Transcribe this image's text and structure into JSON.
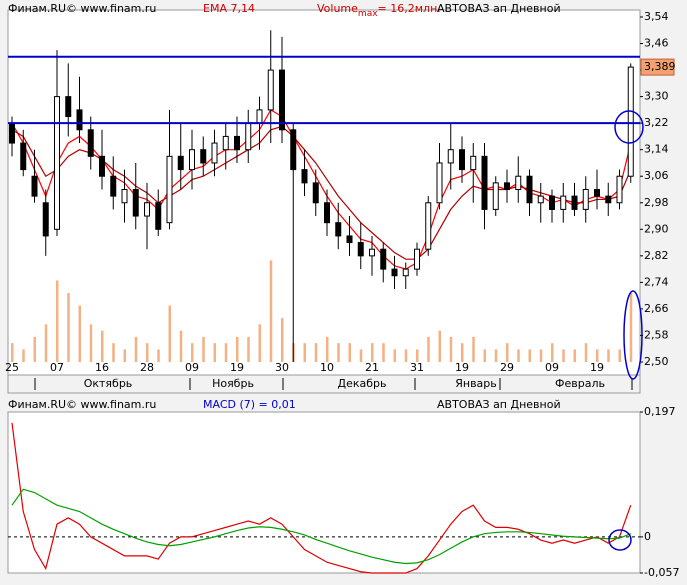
{
  "chart_data": [
    {
      "type": "candlestick",
      "source": "Финам.RU©  www.finam.ru",
      "indicator": "EMA 7,14",
      "volume_label": "Volume",
      "volume_sub": "max",
      "volume_value": "= 16,2млн.",
      "title": "АВТОВАЗ ап Дневной",
      "categories": [
        "25",
        null,
        null,
        null,
        "07",
        null,
        null,
        null,
        "16",
        null,
        null,
        null,
        "28",
        null,
        null,
        null,
        "09",
        null,
        null,
        null,
        "19",
        null,
        null,
        null,
        "30",
        null,
        null,
        null,
        "10",
        null,
        null,
        null,
        "21",
        null,
        null,
        null,
        "31",
        null,
        null,
        null,
        "19",
        null,
        null,
        null,
        "29",
        null,
        null,
        null,
        "09",
        null,
        null,
        null,
        "19",
        null,
        null,
        null
      ],
      "months": [
        "Октябрь",
        "Ноябрь",
        "Декабрь",
        "Январь",
        "Февраль"
      ],
      "open": [
        3.22,
        3.16,
        3.06,
        2.98,
        2.9,
        3.3,
        3.26,
        3.2,
        3.12,
        3.06,
        2.98,
        3.02,
        2.94,
        2.98,
        2.92,
        3.12,
        3.08,
        3.14,
        3.1,
        3.14,
        3.18,
        3.14,
        3.22,
        3.26,
        3.38,
        3.2,
        3.08,
        3.04,
        2.98,
        2.92,
        2.88,
        2.86,
        2.82,
        2.84,
        2.78,
        2.76,
        2.78,
        2.84,
        2.98,
        3.1,
        3.14,
        3.08,
        3.12,
        2.96,
        3.04,
        3.02,
        3.06,
        2.98,
        3.0,
        2.96,
        3.0,
        2.96,
        3.02,
        3.0,
        2.98,
        3.06
      ],
      "high": [
        3.24,
        3.2,
        3.14,
        3.02,
        3.44,
        3.4,
        3.36,
        3.24,
        3.2,
        3.12,
        3.08,
        3.1,
        3.04,
        3.02,
        3.26,
        3.22,
        3.2,
        3.18,
        3.2,
        3.22,
        3.24,
        3.26,
        3.3,
        3.5,
        3.48,
        3.22,
        3.14,
        3.08,
        3.02,
        2.98,
        2.94,
        2.92,
        2.88,
        2.86,
        2.82,
        2.8,
        2.86,
        3.0,
        3.16,
        3.22,
        3.18,
        3.16,
        3.16,
        3.06,
        3.08,
        3.12,
        3.08,
        3.04,
        3.02,
        3.04,
        3.04,
        3.06,
        3.08,
        3.04,
        3.08,
        3.4
      ],
      "low": [
        3.12,
        3.06,
        2.98,
        2.82,
        2.88,
        3.18,
        3.16,
        3.08,
        3.02,
        2.96,
        2.92,
        2.9,
        2.84,
        2.88,
        2.9,
        3.02,
        3.02,
        3.06,
        3.06,
        3.08,
        3.1,
        3.1,
        3.14,
        3.16,
        3.16,
        2.5,
        3.0,
        2.94,
        2.88,
        2.84,
        2.82,
        2.78,
        2.76,
        2.74,
        2.72,
        2.72,
        2.76,
        2.82,
        2.96,
        3.02,
        3.04,
        2.98,
        2.9,
        2.94,
        2.98,
        2.98,
        2.94,
        2.92,
        2.92,
        2.92,
        2.94,
        2.92,
        2.96,
        2.94,
        2.96,
        3.04
      ],
      "close": [
        3.16,
        3.08,
        3.0,
        2.88,
        3.3,
        3.24,
        3.2,
        3.12,
        3.06,
        3.0,
        3.02,
        2.94,
        2.98,
        2.9,
        3.12,
        3.08,
        3.14,
        3.1,
        3.16,
        3.18,
        3.14,
        3.22,
        3.26,
        3.38,
        3.2,
        3.08,
        3.04,
        2.98,
        2.92,
        2.88,
        2.86,
        2.82,
        2.84,
        2.78,
        2.76,
        2.78,
        2.84,
        2.98,
        3.1,
        3.14,
        3.08,
        3.12,
        2.96,
        3.04,
        3.02,
        3.06,
        2.98,
        3.0,
        2.96,
        3.0,
        2.96,
        3.02,
        3.0,
        2.98,
        3.06,
        3.389
      ],
      "last_label": "3,389",
      "volume": [
        3,
        2,
        4,
        6,
        13,
        11,
        9,
        6,
        5,
        3,
        2,
        4,
        3,
        2,
        9,
        5,
        3,
        4,
        3,
        3,
        4,
        4,
        6,
        16.2,
        7,
        3,
        3,
        3,
        4,
        3,
        3,
        2,
        3,
        3,
        2,
        2,
        2,
        4,
        5,
        4,
        3,
        4,
        2,
        2,
        3,
        2,
        2,
        2,
        3,
        2,
        2,
        3,
        2,
        2,
        2,
        11
      ],
      "volume_color": "#f4b183",
      "volume_ylim": [
        0,
        55
      ],
      "lines": [
        {
          "color": "#ff0000",
          "values": [
            3.22,
            3.16,
            3.08,
            3.0,
            3.1,
            3.16,
            3.18,
            3.15,
            3.11,
            3.06,
            3.04,
            3.0,
            2.99,
            2.96,
            3.02,
            3.05,
            3.08,
            3.09,
            3.12,
            3.14,
            3.14,
            3.17,
            3.2,
            3.26,
            3.24,
            3.18,
            3.12,
            3.06,
            3.0,
            2.95,
            2.91,
            2.87,
            2.86,
            2.82,
            2.79,
            2.78,
            2.8,
            2.88,
            2.98,
            3.05,
            3.06,
            3.08,
            3.02,
            3.03,
            3.02,
            3.04,
            3.01,
            3.0,
            2.98,
            2.99,
            2.97,
            2.99,
            3.0,
            2.99,
            3.02,
            3.16
          ]
        },
        {
          "color": "#b00000",
          "values": [
            3.2,
            3.18,
            3.12,
            3.06,
            3.08,
            3.12,
            3.14,
            3.13,
            3.11,
            3.08,
            3.06,
            3.03,
            3.01,
            2.98,
            3.0,
            3.02,
            3.05,
            3.06,
            3.08,
            3.1,
            3.12,
            3.14,
            3.16,
            3.2,
            3.21,
            3.18,
            3.14,
            3.1,
            3.05,
            3.0,
            2.96,
            2.92,
            2.89,
            2.86,
            2.83,
            2.81,
            2.81,
            2.84,
            2.9,
            2.96,
            3.0,
            3.03,
            3.02,
            3.02,
            3.02,
            3.03,
            3.02,
            3.01,
            3.0,
            2.99,
            2.98,
            2.98,
            2.99,
            2.99,
            3.0,
            3.08
          ]
        }
      ],
      "hlines": {
        "color": "#0000cc",
        "values": [
          3.42,
          3.22
        ]
      },
      "ylim": [
        2.5,
        3.54
      ],
      "yticks": [
        {
          "value": 3.54,
          "label": "3,54"
        },
        {
          "value": 3.46,
          "label": "3,46"
        },
        {
          "value": 3.38,
          "label": "3,38"
        },
        {
          "value": 3.3,
          "label": "3,30"
        },
        {
          "value": 3.22,
          "label": "3,22"
        },
        {
          "value": 3.14,
          "label": "3,14"
        },
        {
          "value": 3.06,
          "label": "3,06"
        },
        {
          "value": 2.98,
          "label": "2,98"
        },
        {
          "value": 2.9,
          "label": "2,90"
        },
        {
          "value": 2.82,
          "label": "2,82"
        },
        {
          "value": 2.74,
          "label": "2,74"
        },
        {
          "value": 2.66,
          "label": "2,66"
        },
        {
          "value": 2.58,
          "label": "2,58"
        },
        {
          "value": 2.5,
          "label": "2,50"
        }
      ]
    },
    {
      "type": "line",
      "source": "Финам.RU©  www.finam.ru",
      "indicator": "MACD (7) = 0,01",
      "title": "АВТОВАЗ ап Дневной",
      "series": [
        {
          "color": "#e00000",
          "values": [
            0.18,
            0.04,
            -0.02,
            -0.05,
            0.02,
            0.03,
            0.02,
            0.0,
            -0.01,
            -0.02,
            -0.03,
            -0.03,
            -0.03,
            -0.035,
            -0.01,
            0.0,
            0.0,
            0.005,
            0.01,
            0.015,
            0.02,
            0.025,
            0.02,
            0.03,
            0.02,
            0.0,
            -0.02,
            -0.03,
            -0.04,
            -0.045,
            -0.05,
            -0.055,
            -0.057,
            -0.057,
            -0.057,
            -0.057,
            -0.05,
            -0.03,
            -0.005,
            0.02,
            0.04,
            0.05,
            0.025,
            0.015,
            0.015,
            0.012,
            0.005,
            -0.005,
            -0.01,
            -0.005,
            -0.01,
            -0.005,
            0.0,
            -0.01,
            0.0,
            0.05
          ]
        },
        {
          "color": "#00a000",
          "values": [
            0.05,
            0.075,
            0.07,
            0.06,
            0.05,
            0.045,
            0.04,
            0.03,
            0.02,
            0.012,
            0.005,
            -0.002,
            -0.008,
            -0.012,
            -0.014,
            -0.012,
            -0.008,
            -0.004,
            0.0,
            0.005,
            0.01,
            0.014,
            0.016,
            0.015,
            0.012,
            0.008,
            0.003,
            -0.004,
            -0.01,
            -0.016,
            -0.022,
            -0.027,
            -0.032,
            -0.036,
            -0.04,
            -0.042,
            -0.041,
            -0.036,
            -0.028,
            -0.018,
            -0.008,
            0.0,
            0.005,
            0.007,
            0.008,
            0.008,
            0.007,
            0.005,
            0.003,
            0.001,
            0.0,
            -0.001,
            -0.002,
            -0.003,
            -0.002,
            0.005
          ]
        }
      ],
      "ylim": [
        -0.057,
        0.197
      ],
      "yticks": [
        {
          "value": 0.197,
          "label": "0,197"
        },
        0,
        {
          "value": -0.057,
          "label": "-0,057"
        }
      ]
    }
  ]
}
